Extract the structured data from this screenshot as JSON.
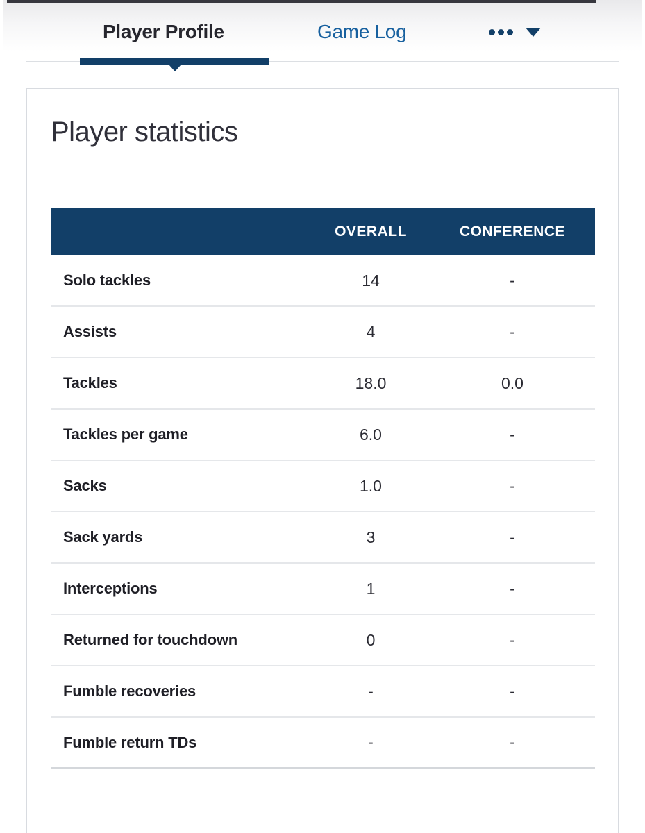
{
  "tabs": {
    "items": [
      {
        "label": "Player Profile",
        "active": true
      },
      {
        "label": "Game Log",
        "active": false
      }
    ],
    "more_menu": {
      "icon": "ellipsis-and-chevron-down"
    }
  },
  "card": {
    "title": "Player statistics"
  },
  "table": {
    "columns": [
      "",
      "OVERALL",
      "CONFERENCE"
    ],
    "rows": [
      {
        "label": "Solo tackles",
        "overall": "14",
        "conference": "-"
      },
      {
        "label": "Assists",
        "overall": "4",
        "conference": "-"
      },
      {
        "label": "Tackles",
        "overall": "18.0",
        "conference": "0.0"
      },
      {
        "label": "Tackles per game",
        "overall": "6.0",
        "conference": "-"
      },
      {
        "label": "Sacks",
        "overall": "1.0",
        "conference": "-"
      },
      {
        "label": "Sack yards",
        "overall": "3",
        "conference": "-"
      },
      {
        "label": "Interceptions",
        "overall": "1",
        "conference": "-"
      },
      {
        "label": "Returned for touchdown",
        "overall": "0",
        "conference": "-"
      },
      {
        "label": "Fumble recoveries",
        "overall": "-",
        "conference": "-"
      },
      {
        "label": "Fumble return TDs",
        "overall": "-",
        "conference": "-"
      }
    ]
  },
  "colors": {
    "navy": "#123f68",
    "link_blue": "#17609f",
    "active_tab_text": "#26262e",
    "heading_text": "#30303a",
    "row_label_text": "#1f1f26",
    "row_value_text": "#2b2b33",
    "separator": "#e5e7ea",
    "card_border": "#d8dbe0"
  }
}
